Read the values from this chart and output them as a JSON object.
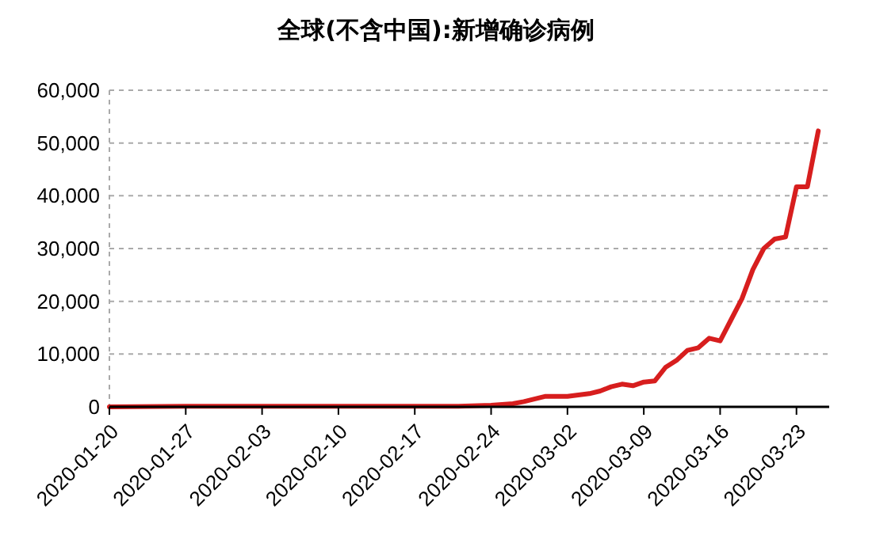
{
  "chart_data": {
    "type": "line",
    "title": "全球(不含中国):新增确诊病例",
    "x": [
      "2020-01-20",
      "2020-01-27",
      "2020-02-03",
      "2020-02-10",
      "2020-02-17",
      "2020-02-21",
      "2020-02-24",
      "2020-02-26",
      "2020-02-27",
      "2020-02-29",
      "2020-03-02",
      "2020-03-04",
      "2020-03-05",
      "2020-03-06",
      "2020-03-07",
      "2020-03-08",
      "2020-03-09",
      "2020-03-10",
      "2020-03-11",
      "2020-03-12",
      "2020-03-13",
      "2020-03-14",
      "2020-03-15",
      "2020-03-16",
      "2020-03-17",
      "2020-03-18",
      "2020-03-19",
      "2020-03-20",
      "2020-03-21",
      "2020-03-22",
      "2020-03-23",
      "2020-03-24",
      "2020-03-25"
    ],
    "series": [
      {
        "color": "#d71e1e",
        "values": [
          0,
          100,
          100,
          100,
          100,
          100,
          300,
          600,
          1000,
          2000,
          2000,
          2500,
          3000,
          3800,
          4300,
          4000,
          4700,
          4900,
          7500,
          8800,
          10700,
          11200,
          13000,
          12500,
          16500,
          20500,
          26000,
          30000,
          31800,
          32200,
          41700,
          41700,
          52300
        ]
      }
    ],
    "xlim": [
      "2020-01-20",
      "2020-03-26"
    ],
    "xticks": [
      {
        "value": "2020-01-20",
        "label": "2020-01-20"
      },
      {
        "value": "2020-01-27",
        "label": "2020-01-27"
      },
      {
        "value": "2020-02-03",
        "label": "2020-02-03"
      },
      {
        "value": "2020-02-10",
        "label": "2020-02-10"
      },
      {
        "value": "2020-02-17",
        "label": "2020-02-17"
      },
      {
        "value": "2020-02-24",
        "label": "2020-02-24"
      },
      {
        "value": "2020-03-02",
        "label": "2020-03-02"
      },
      {
        "value": "2020-03-09",
        "label": "2020-03-09"
      },
      {
        "value": "2020-03-16",
        "label": "2020-03-16"
      },
      {
        "value": "2020-03-23",
        "label": "2020-03-23"
      }
    ],
    "ylim": [
      0,
      60000
    ],
    "yticks": [
      {
        "value": 0,
        "label": "0"
      },
      {
        "value": 10000,
        "label": "10,000"
      },
      {
        "value": 20000,
        "label": "20,000"
      },
      {
        "value": 30000,
        "label": "30,000"
      },
      {
        "value": 40000,
        "label": "40,000"
      },
      {
        "value": 50000,
        "label": "50,000"
      },
      {
        "value": 60000,
        "label": "60,000"
      }
    ],
    "grid": "y",
    "marker": "none",
    "line_style": "solid"
  }
}
